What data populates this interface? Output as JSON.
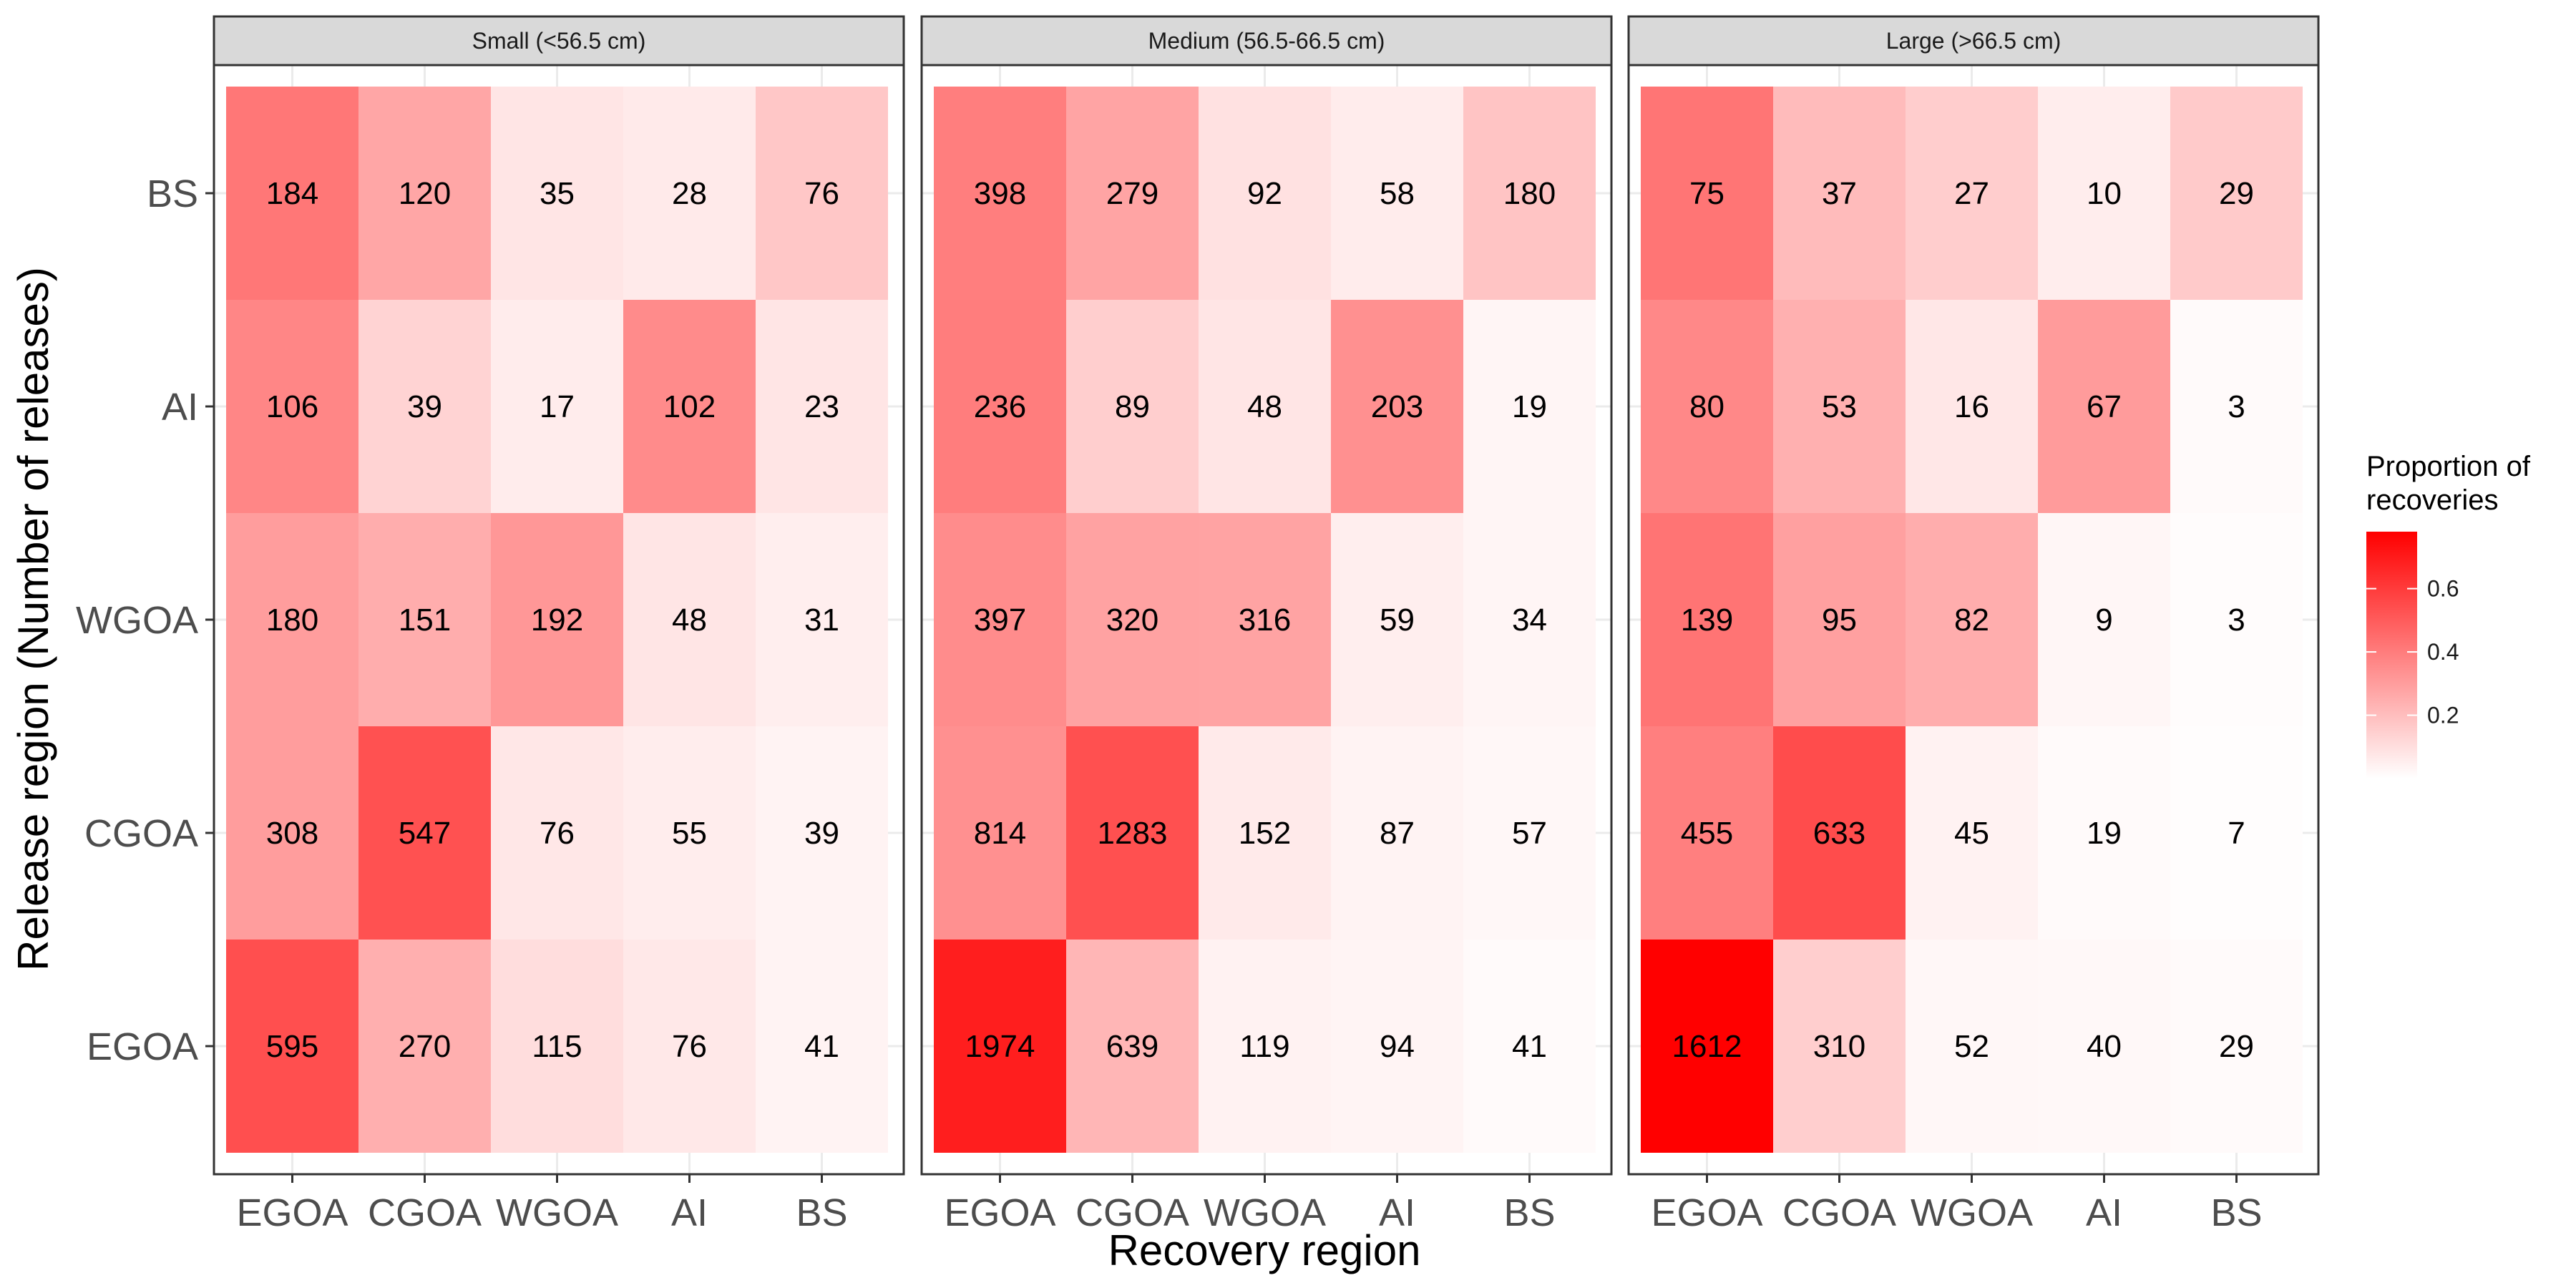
{
  "chart_data": {
    "type": "heatmap",
    "xlabel": "Recovery region",
    "ylabel": "Release region (Number of releases)",
    "x_categories": [
      "EGOA",
      "CGOA",
      "WGOA",
      "AI",
      "BS"
    ],
    "y_categories": [
      "BS",
      "AI",
      "WGOA",
      "CGOA",
      "EGOA"
    ],
    "legend": {
      "title_lines": [
        "Proportion of",
        "recoveries"
      ],
      "position": "right",
      "range": [
        0,
        0.78
      ],
      "ticks": [
        0.2,
        0.4,
        0.6
      ],
      "tick_labels": [
        "0.2",
        "0.4",
        "0.6"
      ],
      "color_low": "#ffffff",
      "color_high": "#ff0000"
    },
    "panels": [
      {
        "title": "Small (<56.5 cm)",
        "counts": [
          [
            184,
            120,
            35,
            28,
            76
          ],
          [
            106,
            39,
            17,
            102,
            23
          ],
          [
            180,
            151,
            192,
            48,
            31
          ],
          [
            308,
            547,
            76,
            55,
            39
          ],
          [
            595,
            270,
            115,
            76,
            41
          ]
        ],
        "proportions": [
          [
            0.415,
            0.271,
            0.079,
            0.063,
            0.172
          ],
          [
            0.369,
            0.136,
            0.059,
            0.355,
            0.08
          ],
          [
            0.299,
            0.251,
            0.319,
            0.08,
            0.051
          ],
          [
            0.3,
            0.532,
            0.074,
            0.054,
            0.038
          ],
          [
            0.538,
            0.244,
            0.104,
            0.069,
            0.037
          ]
        ]
      },
      {
        "title": "Medium (56.5-66.5 cm)",
        "counts": [
          [
            398,
            279,
            92,
            58,
            180
          ],
          [
            236,
            89,
            48,
            203,
            19
          ],
          [
            397,
            320,
            316,
            59,
            34
          ],
          [
            814,
            1283,
            152,
            87,
            57
          ],
          [
            1974,
            639,
            119,
            94,
            41
          ]
        ],
        "proportions": [
          [
            0.395,
            0.277,
            0.091,
            0.058,
            0.179
          ],
          [
            0.397,
            0.15,
            0.081,
            0.341,
            0.032
          ],
          [
            0.353,
            0.284,
            0.281,
            0.052,
            0.03
          ],
          [
            0.34,
            0.535,
            0.063,
            0.036,
            0.024
          ],
          [
            0.687,
            0.222,
            0.041,
            0.033,
            0.014
          ]
        ]
      },
      {
        "title": "Large (>66.5 cm)",
        "counts": [
          [
            75,
            37,
            27,
            10,
            29
          ],
          [
            80,
            53,
            16,
            67,
            3
          ],
          [
            139,
            95,
            82,
            9,
            3
          ],
          [
            455,
            633,
            45,
            19,
            7
          ],
          [
            1612,
            310,
            52,
            40,
            29
          ]
        ],
        "proportions": [
          [
            0.421,
            0.208,
            0.152,
            0.056,
            0.163
          ],
          [
            0.365,
            0.242,
            0.073,
            0.306,
            0.014
          ],
          [
            0.424,
            0.29,
            0.25,
            0.027,
            0.009
          ],
          [
            0.393,
            0.546,
            0.039,
            0.016,
            0.006
          ],
          [
            0.787,
            0.151,
            0.025,
            0.02,
            0.014
          ]
        ]
      }
    ]
  }
}
